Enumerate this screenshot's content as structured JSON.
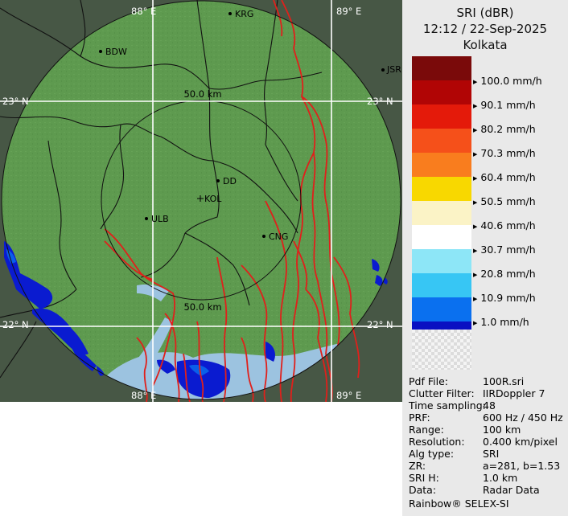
{
  "map": {
    "grid_labels": {
      "lon_top_left": "88° E",
      "lon_top_right": "89° E",
      "lon_bottom_left": "88° E",
      "lon_bottom_right": "89° E",
      "lat_upper_left": "23° N",
      "lat_upper_right": "23° N",
      "lat_lower_left": "22° N",
      "lat_lower_right": "22° N"
    },
    "ring_labels": {
      "inner_top": "50.0 km",
      "inner_bottom": "50.0 km"
    },
    "cities": {
      "krg": "KRG",
      "bdw": "BDW",
      "jsr": "JSR",
      "dd": "DD",
      "kol": "KOL",
      "ulb": "ULB",
      "cng": "CNG"
    },
    "colors": {
      "land": "#5e9a4f",
      "outside": "#3f4d3f",
      "water": "#9cc3e0",
      "rivers": "#e0201b",
      "rain": "#0a1bd0"
    }
  },
  "legend": {
    "title_line1": "SRI (dBR)",
    "title_line2": "12:12 / 22-Sep-2025",
    "title_line3": "Kolkata",
    "levels": [
      {
        "label": "",
        "color": "#7a0a0a"
      },
      {
        "label": "100.0 mm/h",
        "color": "#b10505"
      },
      {
        "label": "90.1 mm/h",
        "color": "#e41a0a"
      },
      {
        "label": "80.2 mm/h",
        "color": "#f5501a"
      },
      {
        "label": "70.3 mm/h",
        "color": "#f97d1e"
      },
      {
        "label": "60.4 mm/h",
        "color": "#f8d800"
      },
      {
        "label": "50.5 mm/h",
        "color": "#fbf3c6"
      },
      {
        "label": "40.6 mm/h",
        "color": "#ffffff"
      },
      {
        "label": "30.7 mm/h",
        "color": "#8de6f7"
      },
      {
        "label": "20.8 mm/h",
        "color": "#37c6f4"
      },
      {
        "label": "10.9 mm/h",
        "color": "#0a70ef"
      },
      {
        "label": "1.0 mm/h",
        "color": "#0a10c2"
      }
    ]
  },
  "info": [
    {
      "key": "Pdf File:",
      "value": "100R.sri"
    },
    {
      "key": "Clutter Filter:",
      "value": "IIRDoppler 7"
    },
    {
      "key": "Time sampling:",
      "value": "48"
    },
    {
      "key": "PRF:",
      "value": "600 Hz / 450 Hz"
    },
    {
      "key": "Range:",
      "value": "100 km"
    },
    {
      "key": "Resolution:",
      "value": "0.400 km/pixel"
    },
    {
      "key": "Alg type:",
      "value": "SRI"
    },
    {
      "key": "ZR:",
      "value": "a=281, b=1.53"
    },
    {
      "key": "SRI H:",
      "value": "1.0 km"
    },
    {
      "key": "Data:",
      "value": "Radar Data"
    }
  ],
  "footer": "Rainbow® SELEX-SI"
}
